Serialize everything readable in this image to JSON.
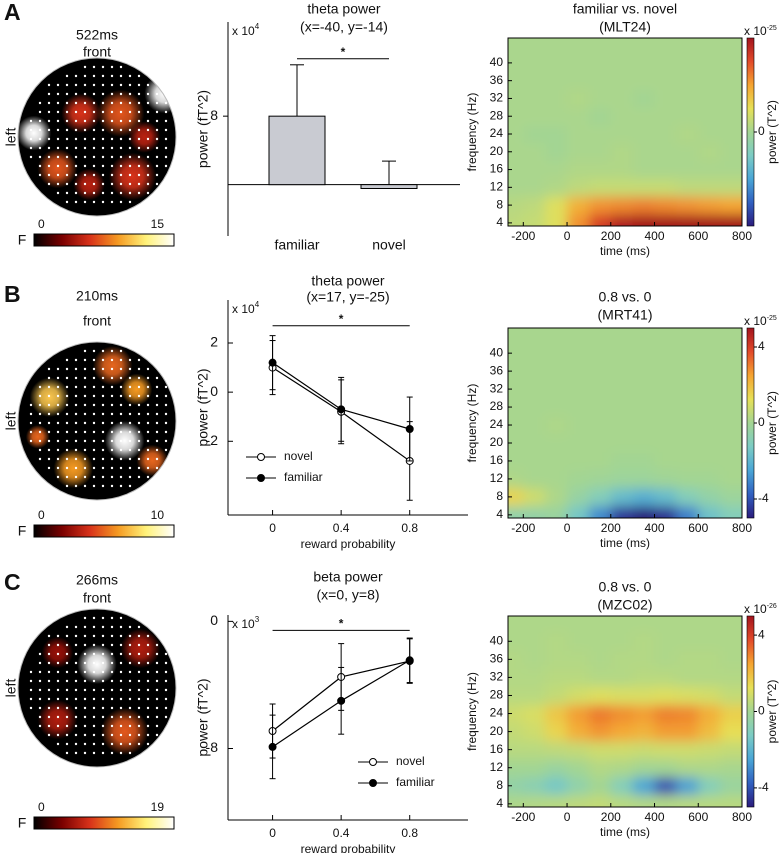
{
  "panel_labels": [
    "A",
    "B",
    "C"
  ],
  "chart_data": [
    {
      "type": "topomap",
      "title": "522ms",
      "subtitle": "front",
      "side_label": "left",
      "colorbar_label": "F",
      "clim": [
        0,
        15
      ],
      "cticks": [
        0,
        15
      ],
      "colormap": [
        "#000000",
        "#7a0000",
        "#d8321a",
        "#f59a22",
        "#fff27a",
        "#ffffff"
      ],
      "blobs": [
        {
          "x": -0.8,
          "y": 0.05,
          "r": 0.22,
          "value": 15
        },
        {
          "x": 0.85,
          "y": 0.55,
          "r": 0.25,
          "value": 15
        },
        {
          "x": -0.2,
          "y": 0.3,
          "r": 0.25,
          "value": 6
        },
        {
          "x": 0.3,
          "y": 0.3,
          "r": 0.3,
          "value": 7
        },
        {
          "x": -0.5,
          "y": -0.4,
          "r": 0.25,
          "value": 7
        },
        {
          "x": 0.45,
          "y": -0.5,
          "r": 0.3,
          "value": 6
        },
        {
          "x": 0.6,
          "y": 0.0,
          "r": 0.2,
          "value": 5
        },
        {
          "x": -0.1,
          "y": -0.6,
          "r": 0.2,
          "value": 5
        }
      ]
    },
    {
      "type": "bar",
      "title": "theta power",
      "subtitle": "(x=-40, y=-14)",
      "ylabel": "power (fT^2)",
      "y_multiplier": "x 10",
      "y_multiplier_exp": "4",
      "categories": [
        "familiar",
        "novel"
      ],
      "values": [
        8,
        -0.45
      ],
      "errors": [
        6,
        3.2
      ],
      "color": "#c9cbd2",
      "ylim": [
        -6,
        19
      ],
      "yticks": [
        8
      ],
      "significance": {
        "label": "*",
        "y": 14.7
      }
    },
    {
      "type": "heatmap",
      "title": "familiar vs. novel",
      "subtitle": "(MLT24)",
      "xlabel": "time (ms)",
      "ylabel": "frequency (Hz)",
      "colorbar_label": "power (T^2)",
      "colorbar_multiplier": "x 10",
      "colorbar_multiplier_exp": "-25",
      "x": [
        -250,
        -150,
        -50,
        50,
        150,
        250,
        350,
        450,
        550,
        650,
        750
      ],
      "y": [
        4,
        8,
        12,
        16,
        20,
        24,
        28,
        32,
        36,
        40,
        44
      ],
      "z": [
        [
          0.4,
          0.5,
          0.9,
          2.2,
          3.2,
          3.8,
          4,
          4,
          4,
          4,
          4
        ],
        [
          0.3,
          0.4,
          0.9,
          1.8,
          2.2,
          2.3,
          2.4,
          2.3,
          2.2,
          2.1,
          2
        ],
        [
          0.1,
          0.1,
          0.2,
          0.4,
          0.5,
          0.5,
          0.5,
          0.5,
          0.4,
          0.4,
          0.4
        ],
        [
          0.1,
          0.1,
          0.1,
          0.2,
          0.2,
          0.2,
          0.1,
          0.1,
          0.1,
          0.1,
          0.1
        ],
        [
          0.1,
          0.1,
          0,
          0.1,
          0.1,
          0.2,
          0.1,
          0.1,
          0.1,
          0.2,
          0.1
        ],
        [
          0.1,
          0,
          0,
          0.1,
          0.1,
          0.1,
          0.1,
          0.1,
          0.2,
          0.1,
          0.1
        ],
        [
          0.1,
          0.1,
          0.1,
          0.1,
          0,
          0.1,
          0.1,
          0.1,
          0.1,
          0.1,
          0.1
        ],
        [
          0.1,
          0.1,
          0.1,
          0.2,
          0.1,
          0.1,
          0,
          0.1,
          0.1,
          0.1,
          0.1
        ],
        [
          0.1,
          0.1,
          0.1,
          0.1,
          0.1,
          0.1,
          0.1,
          0.1,
          0.1,
          0.1,
          0.1
        ],
        [
          0.1,
          0.1,
          0.1,
          0.1,
          0.1,
          0.1,
          0.1,
          0.1,
          0.1,
          0.1,
          0.1
        ],
        [
          0.1,
          0.1,
          0.1,
          0.1,
          0.1,
          0.1,
          0.1,
          0.1,
          0.1,
          0.1,
          0.1
        ]
      ],
      "xlim": [
        -270,
        800
      ],
      "ylim": [
        3.3,
        45.6
      ],
      "xticks": [
        -200,
        0,
        200,
        400,
        600,
        800
      ],
      "yticks": [
        4,
        8,
        12,
        16,
        20,
        24,
        28,
        32,
        36,
        40
      ],
      "zlim": [
        -4,
        4
      ],
      "zticks": [
        0
      ],
      "colormap": [
        "#2b1c7c",
        "#3160c0",
        "#4aa6d6",
        "#7cccc4",
        "#a3d593",
        "#e6e057",
        "#f5a431",
        "#e24a2a",
        "#a3141e"
      ]
    },
    {
      "type": "topomap",
      "title": "210ms",
      "subtitle": "front",
      "side_label": "left",
      "colorbar_label": "F",
      "clim": [
        0,
        10
      ],
      "cticks": [
        0,
        10
      ],
      "colormap": [
        "#000000",
        "#7a0000",
        "#d8321a",
        "#f59a22",
        "#fff27a",
        "#ffffff"
      ],
      "blobs": [
        {
          "x": 0.35,
          "y": -0.25,
          "r": 0.25,
          "value": 10
        },
        {
          "x": -0.6,
          "y": 0.3,
          "r": 0.25,
          "value": 7
        },
        {
          "x": 0.5,
          "y": 0.4,
          "r": 0.2,
          "value": 6
        },
        {
          "x": -0.3,
          "y": -0.6,
          "r": 0.25,
          "value": 6
        },
        {
          "x": 0.2,
          "y": 0.7,
          "r": 0.25,
          "value": 5
        },
        {
          "x": -0.75,
          "y": -0.2,
          "r": 0.15,
          "value": 5
        },
        {
          "x": 0.7,
          "y": -0.5,
          "r": 0.2,
          "value": 5
        }
      ]
    },
    {
      "type": "line",
      "title": "theta power",
      "subtitle": "(x=17, y=-25)",
      "xlabel": "reward probability",
      "ylabel": "power (fT^2)",
      "y_multiplier": "x 10",
      "y_multiplier_exp": "4",
      "x": [
        0,
        0.4,
        0.8
      ],
      "xlim": [
        -0.26,
        1.14
      ],
      "ylim": [
        -5,
        3.75
      ],
      "yticks": [
        2,
        0,
        -2
      ],
      "series": [
        {
          "name": "novel",
          "color": "#000000",
          "marker": "open",
          "values": [
            1.0,
            -0.8,
            -2.8
          ],
          "errors": [
            1.1,
            1.3,
            1.6
          ]
        },
        {
          "name": "familiar",
          "color": "#000000",
          "marker": "filled",
          "values": [
            1.2,
            -0.7,
            -1.5
          ],
          "errors": [
            1.1,
            1.3,
            1.3
          ]
        }
      ],
      "legend": "lower left",
      "significance": {
        "label": "*",
        "y": 2.7,
        "x": [
          0,
          0.8
        ]
      }
    },
    {
      "type": "heatmap",
      "title": "0.8 vs. 0",
      "subtitle": "(MRT41)",
      "xlabel": "time (ms)",
      "ylabel": "frequency (Hz)",
      "colorbar_label": "power (T^2)",
      "colorbar_multiplier": "x 10",
      "colorbar_multiplier_exp": "-25",
      "x": [
        -250,
        -150,
        -50,
        50,
        150,
        250,
        350,
        450,
        550,
        650,
        750
      ],
      "y": [
        4,
        8,
        12,
        16,
        20,
        24,
        28,
        32,
        36,
        40,
        44
      ],
      "z": [
        [
          -0.6,
          -0.5,
          -0.3,
          -1.4,
          -3,
          -4.5,
          -5,
          -4.6,
          -3.2,
          -1.6,
          -1
        ],
        [
          1.5,
          0.8,
          0.2,
          -0.4,
          -1,
          -1.8,
          -2.2,
          -1.8,
          -1,
          -0.5,
          -0.2
        ],
        [
          0.2,
          0.1,
          0.1,
          0,
          -0.1,
          -0.2,
          -0.2,
          -0.1,
          0,
          0,
          0.1
        ],
        [
          0.1,
          0.1,
          0.1,
          0.1,
          0.1,
          0,
          0,
          0.1,
          0.1,
          0.1,
          0.1
        ],
        [
          0.1,
          0.1,
          0.1,
          0.1,
          0.1,
          0.1,
          0.1,
          0.1,
          0.1,
          0.1,
          0.1
        ],
        [
          0.1,
          0.1,
          0.2,
          0.1,
          0.1,
          0.1,
          0.1,
          0.1,
          0.1,
          0.1,
          0.1
        ],
        [
          0.1,
          0.1,
          0.1,
          0.1,
          0.1,
          0.1,
          0.1,
          0.1,
          0.1,
          0.1,
          0.1
        ],
        [
          0.1,
          0.1,
          0.1,
          0.1,
          0.1,
          0.1,
          0.1,
          0.1,
          0.1,
          0.1,
          0.1
        ],
        [
          0.1,
          0.1,
          0.1,
          0.1,
          0.1,
          0.1,
          0.1,
          0.1,
          0.1,
          0.1,
          0.1
        ],
        [
          0.1,
          0.1,
          0.1,
          0.1,
          0.1,
          0.1,
          0.1,
          0.1,
          0.1,
          0.1,
          0.1
        ],
        [
          0.1,
          0.1,
          0.1,
          0.1,
          0.1,
          0.1,
          0.1,
          0.1,
          0.1,
          0.1,
          0.1
        ]
      ],
      "xlim": [
        -270,
        800
      ],
      "ylim": [
        3.3,
        45.6
      ],
      "xticks": [
        -200,
        0,
        200,
        400,
        600,
        800
      ],
      "yticks": [
        4,
        8,
        12,
        16,
        20,
        24,
        28,
        32,
        36,
        40
      ],
      "zlim": [
        -5,
        5
      ],
      "zticks": [
        4,
        0,
        -4
      ],
      "colormap": [
        "#2b1c7c",
        "#3160c0",
        "#4aa6d6",
        "#7cccc4",
        "#a3d593",
        "#e6e057",
        "#f5a431",
        "#e24a2a",
        "#a3141e"
      ]
    },
    {
      "type": "topomap",
      "title": "266ms",
      "subtitle": "front",
      "side_label": "left",
      "colorbar_label": "F",
      "clim": [
        0,
        19
      ],
      "cticks": [
        0,
        19
      ],
      "colormap": [
        "#000000",
        "#7a0000",
        "#d8321a",
        "#f59a22",
        "#fff27a",
        "#ffffff"
      ],
      "blobs": [
        {
          "x": 0.0,
          "y": 0.3,
          "r": 0.25,
          "value": 19
        },
        {
          "x": 0.35,
          "y": -0.55,
          "r": 0.3,
          "value": 9
        },
        {
          "x": -0.5,
          "y": -0.4,
          "r": 0.25,
          "value": 6
        },
        {
          "x": 0.55,
          "y": 0.5,
          "r": 0.25,
          "value": 6
        },
        {
          "x": -0.5,
          "y": 0.45,
          "r": 0.2,
          "value": 5
        }
      ]
    },
    {
      "type": "line",
      "title": "beta power",
      "subtitle": "(x=0, y=8)",
      "xlabel": "reward probability",
      "ylabel": "power (fT^2)",
      "y_multiplier": "x 10",
      "y_multiplier_exp": "3",
      "x": [
        0,
        0.4,
        0.8
      ],
      "xlim": [
        -0.26,
        1.14
      ],
      "ylim": [
        -12.5,
        0.4
      ],
      "yticks": [
        0,
        -8
      ],
      "series": [
        {
          "name": "novel",
          "color": "#000000",
          "marker": "open",
          "values": [
            -6.9,
            -3.5,
            -2.5
          ],
          "errors": [
            1.7,
            2.1,
            1.4
          ]
        },
        {
          "name": "familiar",
          "color": "#000000",
          "marker": "filled",
          "values": [
            -7.9,
            -5.0,
            -2.45
          ],
          "errors": [
            2.0,
            2.1,
            1.4
          ]
        }
      ],
      "legend": "lower right",
      "significance": {
        "label": "*",
        "y": -0.57,
        "x": [
          0,
          0.8
        ]
      }
    },
    {
      "type": "heatmap",
      "title": "0.8 vs. 0",
      "subtitle": "(MZC02)",
      "xlabel": "time (ms)",
      "ylabel": "frequency (Hz)",
      "colorbar_label": "power (T^2)",
      "colorbar_multiplier": "x 10",
      "colorbar_multiplier_exp": "-26",
      "x": [
        -250,
        -150,
        -50,
        50,
        150,
        250,
        350,
        450,
        550,
        650,
        750
      ],
      "y": [
        4,
        8,
        12,
        16,
        20,
        24,
        28,
        32,
        36,
        40,
        44
      ],
      "z": [
        [
          0.2,
          0.3,
          0.4,
          0.5,
          0.6,
          0.4,
          0.3,
          0.3,
          0.4,
          0.4,
          0.4
        ],
        [
          -0.5,
          -0.8,
          -1.4,
          -0.6,
          0,
          -1,
          -2.5,
          -4,
          -2.6,
          -1,
          -0.3
        ],
        [
          0,
          0,
          -0.3,
          0,
          0.3,
          0.2,
          0,
          0,
          0.2,
          0.2,
          0.1
        ],
        [
          0.4,
          0.4,
          0.5,
          0.6,
          0.8,
          0.8,
          0.7,
          0.8,
          0.8,
          0.7,
          0.6
        ],
        [
          0.6,
          0.8,
          1.5,
          2.3,
          2.7,
          2.4,
          2.2,
          2.6,
          2.6,
          2,
          1.3
        ],
        [
          0.8,
          1,
          1.8,
          2.6,
          3.1,
          2.8,
          2.6,
          3,
          2.9,
          2.3,
          1.6
        ],
        [
          0.4,
          0.4,
          0.6,
          0.9,
          1.1,
          1,
          1,
          1.1,
          1,
          0.9,
          0.6
        ],
        [
          0.3,
          0.3,
          0.4,
          0.4,
          0.3,
          0.3,
          0.4,
          0.4,
          0.3,
          0.3,
          0.3
        ],
        [
          0.3,
          0.2,
          0.3,
          0.3,
          0.2,
          0.3,
          0.3,
          0.2,
          0.3,
          0.3,
          0.2
        ],
        [
          0.2,
          0.2,
          0.3,
          0.2,
          0.2,
          0.2,
          0.3,
          0.2,
          0.2,
          0.2,
          0.2
        ],
        [
          0.2,
          0.2,
          0.2,
          0.2,
          0.2,
          0.2,
          0.2,
          0.2,
          0.2,
          0.2,
          0.2
        ]
      ],
      "xlim": [
        -270,
        800
      ],
      "ylim": [
        3.3,
        45.6
      ],
      "xticks": [
        -200,
        0,
        200,
        400,
        600,
        800
      ],
      "yticks": [
        4,
        8,
        12,
        16,
        20,
        24,
        28,
        32,
        36,
        40
      ],
      "zlim": [
        -5,
        5
      ],
      "zticks": [
        4,
        0,
        -4
      ],
      "colormap": [
        "#2b1c7c",
        "#3160c0",
        "#4aa6d6",
        "#7cccc4",
        "#a3d593",
        "#e6e057",
        "#f5a431",
        "#e24a2a",
        "#a3141e"
      ]
    }
  ]
}
